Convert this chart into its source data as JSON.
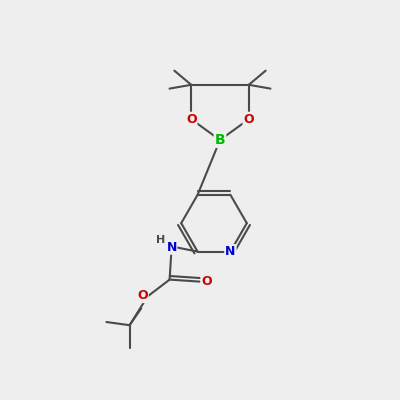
{
  "background_color": "#eeeeee",
  "bond_color": "#4a4a4a",
  "atom_colors": {
    "B": "#00bb00",
    "O": "#cc0000",
    "N": "#0000cc",
    "C": "#4a4a4a"
  },
  "figsize": [
    4.0,
    4.0
  ],
  "dpi": 100,
  "xlim": [
    0,
    10
  ],
  "ylim": [
    0,
    10
  ]
}
